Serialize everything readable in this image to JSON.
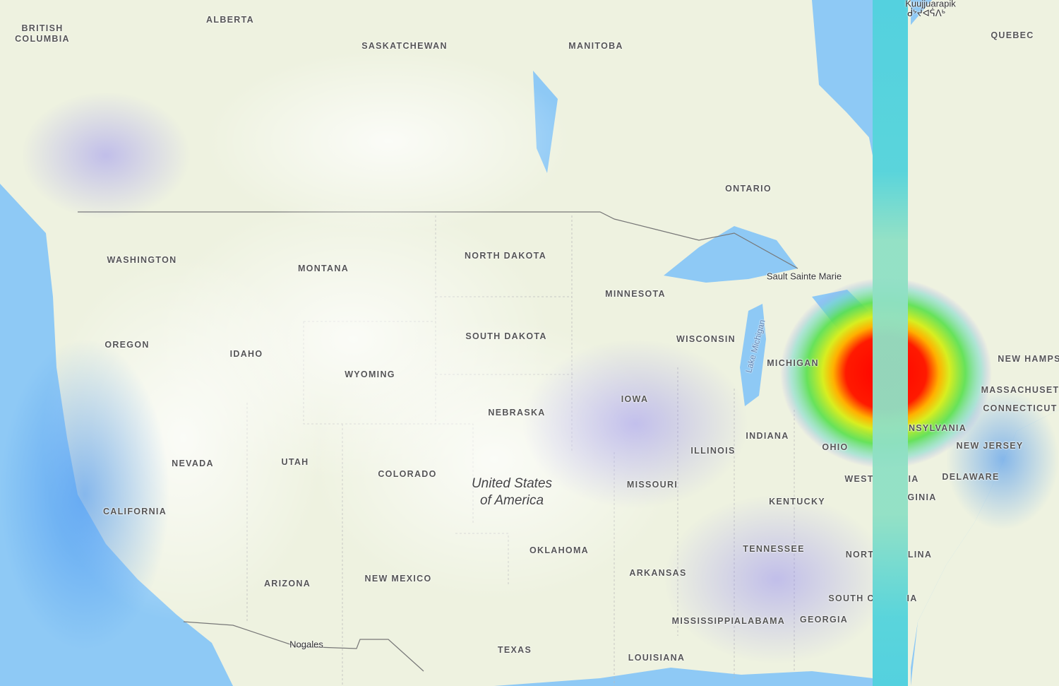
{
  "map": {
    "type": "heatmap-overlay",
    "colors": {
      "ocean": "#8ec9f5",
      "land": "#eef3e2",
      "heat_low": "#9c8cf5",
      "heat_mid": "#5fe04a",
      "heat_high": "#ff0000",
      "stripe": "#52d3db"
    },
    "country_label": {
      "line1": "United States",
      "line2": "of America"
    },
    "regions": {
      "british_columbia": "BRITISH COLUMBIA",
      "alberta": "ALBERTA",
      "saskatchewan": "SASKATCHEWAN",
      "manitoba": "MANITOBA",
      "ontario": "ONTARIO",
      "quebec": "QUEBEC",
      "washington": "WASHINGTON",
      "montana": "MONTANA",
      "north_dakota": "NORTH DAKOTA",
      "minnesota": "MINNESOTA",
      "oregon": "OREGON",
      "idaho": "IDAHO",
      "wyoming": "WYOMING",
      "south_dakota": "SOUTH DAKOTA",
      "wisconsin": "WISCONSIN",
      "michigan": "MICHIGAN",
      "new_hampshire": "NEW HAMPS",
      "massachusetts": "MASSACHUSET",
      "connecticut": "CONNECTICUT",
      "iowa": "IOWA",
      "nebraska": "NEBRASKA",
      "indiana": "INDIANA",
      "ohio": "OHIO",
      "pennsylvania": "NSYLVANIA",
      "new_jersey": "NEW JERSEY",
      "nevada": "NEVADA",
      "utah": "UTAH",
      "colorado": "COLORADO",
      "illinois": "ILLINOIS",
      "missouri": "MISSOURI",
      "west_virginia": "WEST",
      "virginia_a": "IA",
      "delaware": "DELAWARE",
      "kentucky": "KENTUCKY",
      "virginia_b": "GINIA",
      "california": "CALIFORNIA",
      "oklahoma": "OKLAHOMA",
      "tennessee": "TENNESSEE",
      "north_carolina_a": "NORT",
      "north_carolina_b": "LINA",
      "arkansas": "ARKANSAS",
      "arizona": "ARIZONA",
      "new_mexico": "NEW MEXICO",
      "south_carolina_a": "SOUTH C",
      "south_carolina_b": "IA",
      "mississippi": "MISSISSIPPI",
      "alabama": "ALABAMA",
      "georgia": "GEORGIA",
      "texas": "TEXAS",
      "louisiana": "LOUISIANA"
    },
    "cities": {
      "kuujjuarapik": "Kuujjuarapik",
      "kuujjuarapik_syllabics": "ᑰᔾᔪᐊᕌᐱᒃ",
      "sault": "Sault Sainte Marie",
      "nogales": "Nogales"
    },
    "water": {
      "lake_michigan": "Lake Michigan"
    },
    "hotspot": {
      "intensity": "high",
      "location": "Michigan / Ohio / Ontario border"
    }
  }
}
